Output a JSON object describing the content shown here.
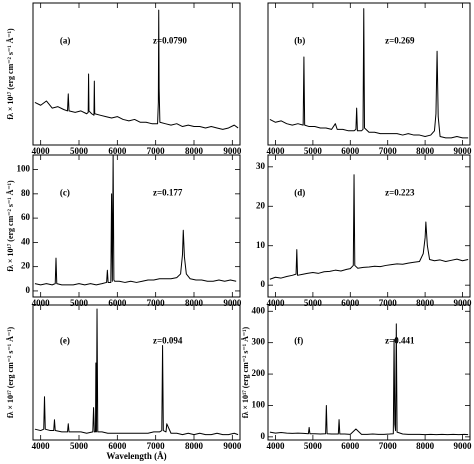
{
  "chart_data": [
    {
      "type": "line",
      "label": "(a)",
      "annotation": "z=0.0790",
      "ylabel": "fλ × 10¹⁷ (erg cm⁻² s⁻¹ Å⁻¹)",
      "color": "#000000",
      "x": [
        3850,
        4000,
        4150,
        4300,
        4450,
        4600,
        4700,
        4720,
        4740,
        4900,
        5050,
        5200,
        5240,
        5250,
        5260,
        5330,
        5390,
        5400,
        5410,
        5550,
        5700,
        5850,
        6000,
        6150,
        6300,
        6450,
        6600,
        6750,
        6900,
        7050,
        7070,
        7080,
        7090,
        7110,
        7250,
        7400,
        7550,
        7700,
        7850,
        8000,
        8150,
        8300,
        8450,
        8600,
        8750,
        8900,
        9050,
        9150
      ],
      "values": [
        30,
        28,
        31,
        26,
        27,
        25,
        24,
        36,
        24,
        23,
        24,
        22,
        23,
        50,
        24,
        22,
        21,
        45,
        22,
        21,
        20,
        19,
        20,
        18,
        17,
        18,
        16,
        16,
        15,
        15,
        30,
        95,
        40,
        16,
        15,
        14,
        15,
        13,
        14,
        13,
        13,
        12,
        13,
        12,
        11,
        12,
        14,
        12
      ],
      "xlim": [
        3800,
        9200
      ],
      "xticks": [
        4000,
        5000,
        6000,
        7000,
        8000,
        9000
      ],
      "ylim": [
        0,
        100
      ]
    },
    {
      "type": "line",
      "label": "(b)",
      "annotation": "z=0.269",
      "color": "#000000",
      "x": [
        3850,
        4000,
        4150,
        4300,
        4450,
        4600,
        4740,
        4760,
        4780,
        4900,
        5050,
        5200,
        5350,
        5500,
        5600,
        5650,
        5800,
        5950,
        6100,
        6150,
        6170,
        6190,
        6300,
        6340,
        6360,
        6380,
        6500,
        6650,
        6800,
        6950,
        7100,
        7250,
        7400,
        7550,
        7700,
        7850,
        8000,
        8150,
        8250,
        8290,
        8320,
        8350,
        8400,
        8550,
        8700,
        8850,
        9000,
        9150
      ],
      "values": [
        18,
        16,
        17,
        15,
        14,
        15,
        14,
        62,
        14,
        13,
        13,
        12,
        12,
        11,
        15,
        11,
        11,
        10,
        10,
        11,
        26,
        10,
        10,
        11,
        96,
        12,
        9,
        9,
        8,
        8,
        8,
        8,
        7,
        8,
        7,
        7,
        6,
        7,
        10,
        22,
        66,
        20,
        6,
        5,
        5,
        6,
        5,
        5
      ],
      "xlim": [
        3800,
        9200
      ],
      "xticks": [
        4000,
        5000,
        6000,
        7000,
        8000,
        9000
      ],
      "ylim": [
        0,
        100
      ]
    },
    {
      "type": "line",
      "label": "(c)",
      "annotation": "z=0.177",
      "ylabel": "fλ × 10¹⁷ (erg cm⁻² s⁻¹ Å⁻¹)",
      "color": "#000000",
      "x": [
        3850,
        4000,
        4150,
        4300,
        4380,
        4400,
        4420,
        4550,
        4700,
        4850,
        5000,
        5150,
        5300,
        5450,
        5600,
        5720,
        5740,
        5760,
        5830,
        5850,
        5870,
        5890,
        5910,
        5930,
        6050,
        6200,
        6350,
        6500,
        6650,
        6800,
        6950,
        7100,
        7250,
        7400,
        7550,
        7650,
        7700,
        7720,
        7750,
        7800,
        7900,
        8050,
        8200,
        8350,
        8500,
        8650,
        8800,
        8950,
        9100
      ],
      "values": [
        6,
        5,
        6,
        5,
        6,
        27,
        6,
        5,
        5,
        5,
        6,
        5,
        6,
        5,
        6,
        7,
        17,
        7,
        7,
        80,
        8,
        112,
        9,
        8,
        8,
        7,
        8,
        7,
        8,
        9,
        9,
        10,
        10,
        10,
        11,
        14,
        30,
        50,
        28,
        14,
        10,
        9,
        9,
        8,
        8,
        9,
        8,
        9,
        8
      ],
      "xlim": [
        3800,
        9200
      ],
      "xticks": [
        4000,
        5000,
        6000,
        7000,
        8000,
        9000
      ],
      "ylim": [
        -5,
        112
      ],
      "yticks": [
        0,
        20,
        40,
        60,
        80,
        100
      ]
    },
    {
      "type": "line",
      "label": "(d)",
      "annotation": "z=0.223",
      "color": "#000000",
      "x": [
        3850,
        4000,
        4150,
        4300,
        4450,
        4550,
        4570,
        4590,
        4700,
        4850,
        5000,
        5150,
        5300,
        5450,
        5600,
        5750,
        5900,
        6000,
        6080,
        6100,
        6120,
        6200,
        6350,
        6500,
        6650,
        6800,
        6950,
        7100,
        7250,
        7400,
        7550,
        7700,
        7850,
        7950,
        8000,
        8020,
        8060,
        8120,
        8250,
        8400,
        8550,
        8700,
        8850,
        9000,
        9150
      ],
      "values": [
        1.5,
        2,
        1.8,
        2.2,
        2.5,
        2.8,
        9,
        2.5,
        2.7,
        3,
        3.2,
        3,
        3.4,
        3.5,
        3.8,
        3.6,
        4,
        4.2,
        5,
        28,
        5,
        4.3,
        4.5,
        4.6,
        4.8,
        4.7,
        5,
        5.2,
        5.4,
        5.3,
        5.6,
        5.8,
        6,
        8,
        12,
        16,
        10,
        6.5,
        6.2,
        6.4,
        6,
        6.3,
        6.6,
        6.2,
        6.5
      ],
      "xlim": [
        3800,
        9200
      ],
      "xticks": [
        4000,
        5000,
        6000,
        7000,
        8000,
        9000
      ],
      "ylim": [
        -3,
        33
      ],
      "yticks": [
        0,
        10,
        20,
        30
      ]
    },
    {
      "type": "line",
      "label": "(e)",
      "annotation": "z=0.094",
      "ylabel": "fλ × 10¹⁷ (erg cm⁻² s⁻¹ Å⁻¹)",
      "xlabel": "Wavelength (Å)",
      "color": "#000000",
      "x": [
        3850,
        4000,
        4080,
        4100,
        4120,
        4250,
        4340,
        4360,
        4380,
        4550,
        4700,
        4720,
        4740,
        4900,
        5050,
        5200,
        5360,
        5380,
        5400,
        5430,
        5440,
        5455,
        5470,
        5490,
        5600,
        5750,
        5900,
        6050,
        6200,
        6350,
        6500,
        6650,
        6800,
        6950,
        7100,
        7160,
        7180,
        7200,
        7270,
        7290,
        7400,
        7550,
        7700,
        7850,
        8000,
        8150,
        8300,
        8450,
        8600,
        8750,
        8900,
        9050,
        9150
      ],
      "values": [
        8,
        7,
        8,
        32,
        8,
        7,
        7,
        15,
        7,
        6,
        6,
        12,
        6,
        6,
        6,
        5,
        6,
        24,
        6,
        6,
        57,
        6,
        97,
        6,
        6,
        5,
        5,
        5,
        5,
        5,
        5,
        5,
        5,
        6,
        6,
        7,
        70,
        7,
        6,
        12,
        5,
        5,
        4,
        5,
        4,
        5,
        4,
        4,
        5,
        4,
        4,
        5,
        4
      ],
      "xlim": [
        3800,
        9200
      ],
      "xticks": [
        4000,
        5000,
        6000,
        7000,
        8000,
        9000
      ],
      "ylim": [
        0,
        100
      ]
    },
    {
      "type": "line",
      "label": "(f)",
      "annotation": "z=0.441",
      "ylabel": "fλ × 10¹⁷ (erg cm⁻² s⁻¹ Å⁻¹)",
      "color": "#000000",
      "x": [
        3850,
        4000,
        4150,
        4300,
        4450,
        4600,
        4750,
        4880,
        4900,
        4920,
        5050,
        5200,
        5340,
        5360,
        5380,
        5500,
        5680,
        5700,
        5720,
        5850,
        6000,
        6150,
        6300,
        6450,
        6600,
        6750,
        6900,
        7050,
        7150,
        7170,
        7190,
        7210,
        7230,
        7250,
        7400,
        7550,
        7700,
        7850,
        8000,
        8150,
        8300,
        8450,
        8600,
        8750,
        8900,
        9050,
        9150
      ],
      "values": [
        15,
        12,
        14,
        12,
        11,
        12,
        11,
        10,
        30,
        10,
        10,
        9,
        10,
        100,
        10,
        9,
        9,
        55,
        9,
        9,
        8,
        25,
        8,
        8,
        9,
        8,
        8,
        9,
        10,
        310,
        40,
        20,
        360,
        15,
        9,
        8,
        8,
        8,
        7,
        8,
        7,
        8,
        7,
        8,
        7,
        8,
        7
      ],
      "xlim": [
        3800,
        9200
      ],
      "xticks": [
        4000,
        5000,
        6000,
        7000,
        8000,
        9000
      ],
      "ylim": [
        -10,
        420
      ],
      "yticks": [
        0,
        100,
        200,
        300,
        400
      ]
    }
  ]
}
